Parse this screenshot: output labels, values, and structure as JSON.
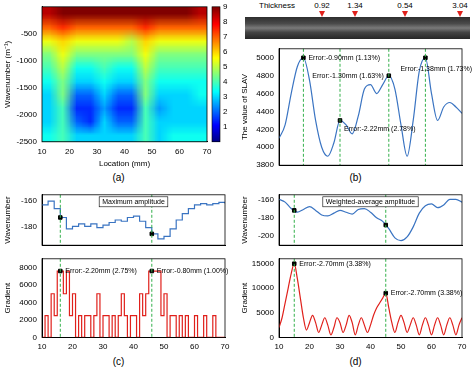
{
  "photo": {
    "label": "Thickness",
    "values": [
      0.92,
      1.34,
      0.54,
      3.04
    ]
  },
  "chart_data": [
    {
      "type": "heatmap",
      "subtitle": "(a)",
      "x_label": "Location (mm)",
      "y_label": "Wavenumber (m⁻¹)",
      "x": [
        12.5,
        17.5,
        22.5,
        27.5,
        32.5,
        37.5,
        42.5,
        47.5,
        52.5,
        57.5,
        62.5,
        67.5
      ],
      "y": [
        -125,
        -375,
        -625,
        -875,
        -1125,
        -1375,
        -1625,
        -1875,
        -2125,
        -2375
      ],
      "cells": [
        [
          8.5,
          9,
          9,
          9,
          9,
          9,
          9,
          9,
          9,
          9,
          9,
          8.5
        ],
        [
          7,
          7.5,
          7,
          7,
          7,
          7,
          7,
          7.5,
          7,
          7,
          7,
          7
        ],
        [
          5.5,
          6,
          5.5,
          5.5,
          5.5,
          5.5,
          5,
          6,
          5.5,
          5.5,
          5.5,
          5.5
        ],
        [
          4.5,
          5.5,
          4.5,
          4.5,
          4.5,
          4.5,
          4.5,
          5.5,
          4.5,
          4.5,
          4.5,
          4.5
        ],
        [
          4,
          5,
          3.5,
          3.5,
          4,
          3.5,
          3.5,
          5,
          4,
          4,
          4,
          4
        ],
        [
          3.5,
          4.5,
          3,
          3,
          3.5,
          3,
          3,
          4.5,
          3.5,
          3.5,
          3.5,
          3.5
        ],
        [
          3,
          4.5,
          2,
          2,
          3,
          2,
          2,
          4.5,
          3,
          3,
          3,
          3.5
        ],
        [
          3,
          4,
          1.5,
          1.5,
          2.5,
          1.5,
          1.5,
          4,
          2.5,
          3,
          3,
          3
        ],
        [
          3,
          4,
          2,
          1.5,
          3,
          2,
          2,
          4,
          3,
          3,
          3,
          3
        ],
        [
          3.5,
          4,
          3,
          3,
          3,
          3,
          3,
          4,
          3,
          3.5,
          3.5,
          3.5
        ]
      ],
      "xlim": [
        10,
        70
      ],
      "xticks": [
        10,
        20,
        30,
        40,
        50,
        60,
        70
      ],
      "ylim": [
        -2500,
        0
      ],
      "yticks": [
        -2500,
        -2000,
        -1500,
        -1000,
        -500
      ],
      "colorbar": {
        "range": [
          0,
          9
        ],
        "ticks": [
          1,
          2,
          3,
          4,
          5,
          6,
          7,
          8,
          9
        ]
      },
      "grid": false
    },
    {
      "type": "line",
      "subtitle": "(b)",
      "y_label": "The value of SLAV",
      "color": "#3a74c2",
      "line_style": "smooth",
      "x": [
        10,
        12,
        14,
        16,
        18,
        20,
        22,
        24,
        26,
        28,
        30,
        32,
        34,
        36,
        38,
        40,
        42,
        44,
        46,
        48,
        50,
        52,
        54,
        56,
        58,
        60,
        62,
        64,
        66,
        68,
        70
      ],
      "values": [
        4100,
        4250,
        4600,
        4900,
        5000,
        4750,
        4300,
        4000,
        3900,
        4050,
        4300,
        4250,
        4150,
        4350,
        4650,
        4700,
        4600,
        4700,
        4800,
        4650,
        4250,
        3900,
        4300,
        4850,
        5000,
        4600,
        4300,
        4450,
        4500,
        4450,
        4380
      ],
      "annotations": [
        {
          "x": 18,
          "y": 5000,
          "text": "Error:-0.90mm (1.13%)"
        },
        {
          "x": 30,
          "y": 4300,
          "text": "Error:-2.22mm (2.78%)"
        },
        {
          "x": 46,
          "y": 4800,
          "text": "Error:-1.30mm (1.63%)"
        },
        {
          "x": 58,
          "y": 5000,
          "text": "Error:-1.38mm (1.73%)"
        }
      ],
      "edge_lines": [
        18,
        30,
        46,
        58
      ],
      "xlim": [
        10,
        70
      ],
      "xticks": [
        10,
        20,
        30,
        40,
        50,
        60,
        70
      ],
      "ylim": [
        3800,
        5100
      ],
      "yticks": [
        3800,
        4000,
        4200,
        4400,
        4600,
        4800,
        5000
      ],
      "tick_labels": "y",
      "grid": false
    },
    {
      "type": "line",
      "title": "Maximum amplitude",
      "y_label": "Wavenumber",
      "color": "#3a74c2",
      "line_style": "step",
      "x": [
        10,
        12,
        14,
        16,
        18,
        20,
        22,
        24,
        26,
        28,
        30,
        32,
        34,
        36,
        38,
        40,
        42,
        44,
        46,
        48,
        50,
        52,
        54,
        56,
        58,
        60,
        62,
        64,
        66,
        68,
        70
      ],
      "values": [
        -163,
        -160,
        -166,
        -173,
        -182,
        -180,
        -178,
        -180,
        -178,
        -181,
        -179,
        -177,
        -175,
        -176,
        -173,
        -172,
        -176,
        -181,
        -186,
        -190,
        -188,
        -182,
        -175,
        -170,
        -166,
        -163,
        -162,
        -163,
        -162,
        -161,
        -162
      ],
      "annotations": [
        {
          "x": 16,
          "y": -173
        },
        {
          "x": 46,
          "y": -186
        }
      ],
      "edge_lines": [
        16,
        46
      ],
      "xlim": [
        10,
        70
      ],
      "xticks": [
        10,
        20,
        30,
        40,
        50,
        60,
        70
      ],
      "ylim": [
        -195,
        -155
      ],
      "yticks": [
        -180,
        -160
      ],
      "tick_labels": "y",
      "grid": false
    },
    {
      "type": "line",
      "subtitle": "(c)",
      "y_label": "Gradient",
      "color": "#e0201b",
      "line_style": "step",
      "x": [
        10,
        11,
        12,
        13,
        14,
        15,
        16,
        17,
        18,
        19,
        20,
        21,
        22,
        23,
        24,
        25,
        26,
        27,
        28,
        29,
        30,
        31,
        32,
        33,
        34,
        35,
        36,
        37,
        38,
        39,
        40,
        41,
        42,
        43,
        44,
        45,
        46,
        47,
        48,
        49,
        50,
        51,
        52,
        53,
        54,
        55,
        56,
        57,
        58,
        59,
        60,
        61,
        62,
        63,
        64,
        65,
        66,
        67,
        68,
        69,
        70
      ],
      "values": [
        0,
        2500,
        0,
        5000,
        2500,
        7600,
        7600,
        5000,
        7600,
        2500,
        5000,
        0,
        2500,
        0,
        2500,
        2500,
        0,
        2500,
        5000,
        0,
        2500,
        2500,
        0,
        2500,
        0,
        2500,
        5000,
        2500,
        0,
        2500,
        2500,
        0,
        5000,
        2500,
        5000,
        7600,
        7600,
        7600,
        7600,
        2500,
        5000,
        0,
        2500,
        2500,
        0,
        2500,
        0,
        2500,
        0,
        0,
        2500,
        0,
        0,
        2500,
        0,
        0,
        2500,
        0,
        0,
        0,
        0
      ],
      "annotations": [
        {
          "x": 16,
          "y": 7600,
          "text": "Error:-2.20mm (2.75%)"
        },
        {
          "x": 46,
          "y": 7600,
          "text": "Error:-0.80mm (1.00%)"
        }
      ],
      "edge_lines": [
        16,
        46
      ],
      "xlim": [
        10,
        70
      ],
      "xticks": [
        10,
        20,
        30,
        40,
        50,
        60,
        70
      ],
      "ylim": [
        0,
        9000
      ],
      "yticks": [
        0,
        2000,
        4000,
        6000,
        8000
      ],
      "grid": false
    },
    {
      "type": "line",
      "title": "Weighted-average amplitude",
      "y_label": "Wavenumber",
      "color": "#3a74c2",
      "line_style": "smooth",
      "x": [
        10,
        12,
        14,
        16,
        18,
        20,
        22,
        24,
        26,
        28,
        30,
        32,
        34,
        36,
        38,
        40,
        42,
        44,
        46,
        48,
        50,
        52,
        54,
        56,
        58,
        60,
        62,
        64,
        66,
        68,
        70
      ],
      "values": [
        -160,
        -163,
        -170,
        -174,
        -171,
        -168,
        -172,
        -177,
        -178,
        -175,
        -172,
        -174,
        -176,
        -171,
        -170,
        -174,
        -180,
        -184,
        -192,
        -202,
        -205,
        -201,
        -190,
        -175,
        -167,
        -165,
        -169,
        -166,
        -160,
        -160,
        -163
      ],
      "annotations": [
        {
          "x": 15,
          "y": -172
        },
        {
          "x": 45,
          "y": -188
        }
      ],
      "edge_lines": [
        15,
        45
      ],
      "xlim": [
        10,
        70
      ],
      "xticks": [
        10,
        20,
        30,
        40,
        50,
        60,
        70
      ],
      "ylim": [
        -210,
        -155
      ],
      "yticks": [
        -200,
        -180,
        -160
      ],
      "tick_labels": "y",
      "grid": false
    },
    {
      "type": "line",
      "subtitle": "(d)",
      "y_label": "Gradient",
      "color": "#e0201b",
      "line_style": "smooth",
      "x": [
        10,
        11,
        12,
        13,
        14,
        15,
        16,
        17,
        18,
        19,
        20,
        21,
        22,
        23,
        24,
        25,
        26,
        27,
        28,
        29,
        30,
        31,
        32,
        33,
        34,
        35,
        36,
        37,
        38,
        39,
        40,
        41,
        42,
        43,
        44,
        45,
        46,
        47,
        48,
        49,
        50,
        51,
        52,
        53,
        54,
        55,
        56,
        57,
        58,
        59,
        60,
        61,
        62,
        63,
        64,
        65,
        66,
        67,
        68,
        69,
        70
      ],
      "values": [
        2000,
        4000,
        7000,
        10000,
        13000,
        15000,
        12000,
        8000,
        4000,
        1500,
        3000,
        4500,
        3000,
        1000,
        2500,
        4000,
        2500,
        500,
        2000,
        4000,
        3000,
        1000,
        2500,
        4500,
        3000,
        500,
        2500,
        4000,
        2500,
        1000,
        2500,
        4500,
        6000,
        7000,
        8000,
        9000,
        6000,
        3000,
        1000,
        3000,
        4500,
        3000,
        1000,
        2500,
        4000,
        2500,
        500,
        2500,
        4000,
        2500,
        500,
        2500,
        4000,
        2500,
        500,
        2500,
        4000,
        2500,
        500,
        2500,
        4000
      ],
      "annotations": [
        {
          "x": 15,
          "y": 15000,
          "text": "Error:-2.70mm (3.38%)"
        },
        {
          "x": 45,
          "y": 9000,
          "text": "Error:-2.70mm (3.38%)"
        }
      ],
      "edge_lines": [
        15,
        45
      ],
      "xlim": [
        10,
        70
      ],
      "xticks": [
        10,
        20,
        30,
        40,
        50,
        60,
        70
      ],
      "ylim": [
        0,
        16000
      ],
      "yticks": [
        0,
        5000,
        10000,
        15000
      ],
      "grid": false
    }
  ]
}
